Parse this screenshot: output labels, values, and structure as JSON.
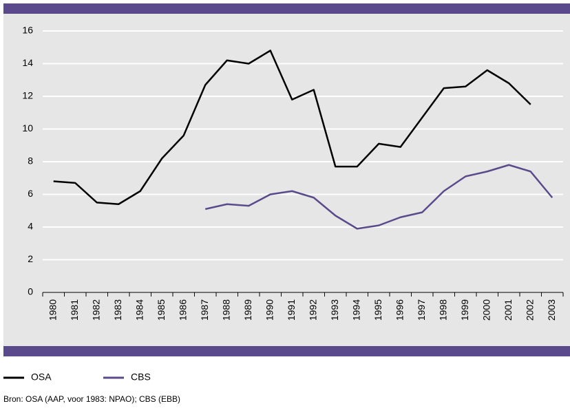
{
  "chart_data": {
    "type": "line",
    "categories": [
      "1980",
      "1981",
      "1982",
      "1983",
      "1984",
      "1985",
      "1986",
      "1987",
      "1988",
      "1989",
      "1990",
      "1991",
      "1992",
      "1993",
      "1994",
      "1995",
      "1996",
      "1997",
      "1998",
      "1999",
      "2000",
      "2001",
      "2002",
      "2003"
    ],
    "series": [
      {
        "name": "OSA",
        "color": "#000000",
        "values": [
          6.8,
          6.7,
          5.5,
          5.4,
          6.2,
          8.2,
          9.6,
          12.7,
          14.2,
          14.0,
          14.8,
          11.8,
          12.4,
          7.7,
          7.7,
          9.1,
          8.9,
          10.7,
          12.5,
          12.6,
          13.6,
          12.8,
          11.5,
          null
        ]
      },
      {
        "name": "CBS",
        "color": "#5b4a8b",
        "values": [
          null,
          null,
          null,
          null,
          null,
          null,
          null,
          5.1,
          5.4,
          5.3,
          6.0,
          6.2,
          5.8,
          4.7,
          3.9,
          4.1,
          4.6,
          4.9,
          6.2,
          7.1,
          7.4,
          7.8,
          7.4,
          5.8
        ]
      }
    ],
    "ylim": [
      0,
      16
    ],
    "yticks": [
      0,
      2,
      4,
      6,
      8,
      10,
      12,
      14,
      16
    ],
    "grid": true,
    "source": "Bron: OSA (AAP, voor 1983: NPAO); CBS (EBB)"
  }
}
